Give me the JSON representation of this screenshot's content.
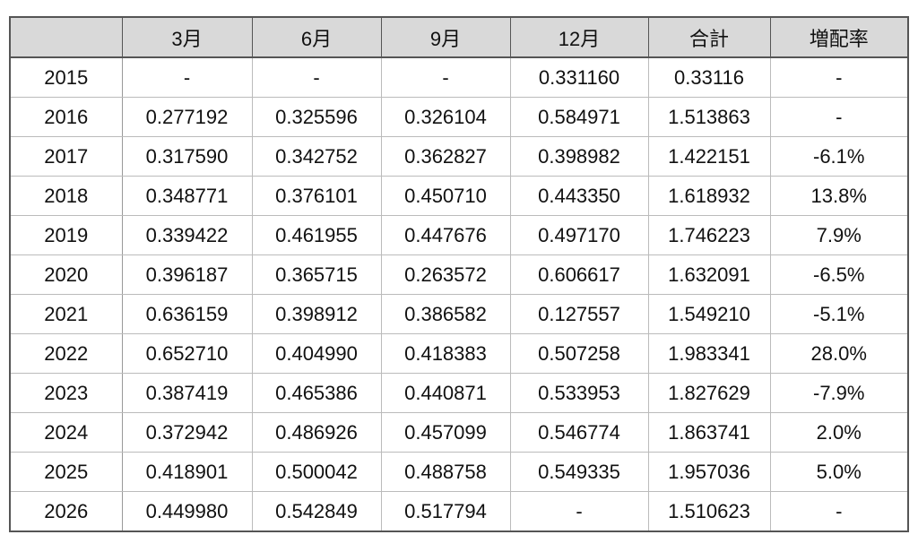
{
  "table": {
    "header": [
      "3月",
      "6月",
      "9月",
      "12月",
      "合計",
      "増配率"
    ],
    "rows": [
      [
        "2015",
        "-",
        "-",
        "-",
        "0.331160",
        "0.33116",
        "-"
      ],
      [
        "2016",
        "0.277192",
        "0.325596",
        "0.326104",
        "0.584971",
        "1.513863",
        "-"
      ],
      [
        "2017",
        "0.317590",
        "0.342752",
        "0.362827",
        "0.398982",
        "1.422151",
        "-6.1%"
      ],
      [
        "2018",
        "0.348771",
        "0.376101",
        "0.450710",
        "0.443350",
        "1.618932",
        "13.8%"
      ],
      [
        "2019",
        "0.339422",
        "0.461955",
        "0.447676",
        "0.497170",
        "1.746223",
        "7.9%"
      ],
      [
        "2020",
        "0.396187",
        "0.365715",
        "0.263572",
        "0.606617",
        "1.632091",
        "-6.5%"
      ],
      [
        "2021",
        "0.636159",
        "0.398912",
        "0.386582",
        "0.127557",
        "1.549210",
        "-5.1%"
      ],
      [
        "2022",
        "0.652710",
        "0.404990",
        "0.418383",
        "0.507258",
        "1.983341",
        "28.0%"
      ],
      [
        "2023",
        "0.387419",
        "0.465386",
        "0.440871",
        "0.533953",
        "1.827629",
        "-7.9%"
      ],
      [
        "2024",
        "0.372942",
        "0.486926",
        "0.457099",
        "0.546774",
        "1.863741",
        "2.0%"
      ],
      [
        "2025",
        "0.418901",
        "0.500042",
        "0.488758",
        "0.549335",
        "1.957036",
        "5.0%"
      ],
      [
        "2026",
        "0.449980",
        "0.542849",
        "0.517794",
        "-",
        "1.510623",
        "-"
      ]
    ]
  }
}
